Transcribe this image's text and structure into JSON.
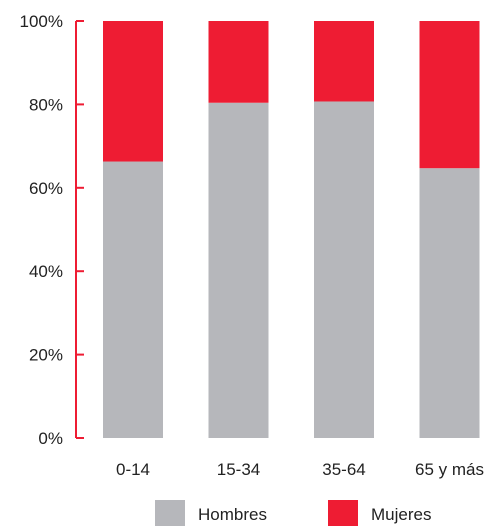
{
  "chart_data": {
    "type": "bar",
    "stacked": true,
    "categories": [
      "0-14",
      "15-34",
      "35-64",
      "65 y más"
    ],
    "series": [
      {
        "name": "Hombres",
        "values": [
          66.3,
          80.4,
          80.7,
          64.7
        ],
        "color": "#b6b7bb"
      },
      {
        "name": "Mujeres",
        "values": [
          33.7,
          19.6,
          19.3,
          35.3
        ],
        "color": "#ee1c33"
      }
    ],
    "ylim": [
      0,
      100
    ],
    "yticks": [
      "0%",
      "20%",
      "40%",
      "60%",
      "80%",
      "100%"
    ],
    "axis_color": "#ee1c33",
    "grid": false,
    "legend_position": "bottom"
  }
}
